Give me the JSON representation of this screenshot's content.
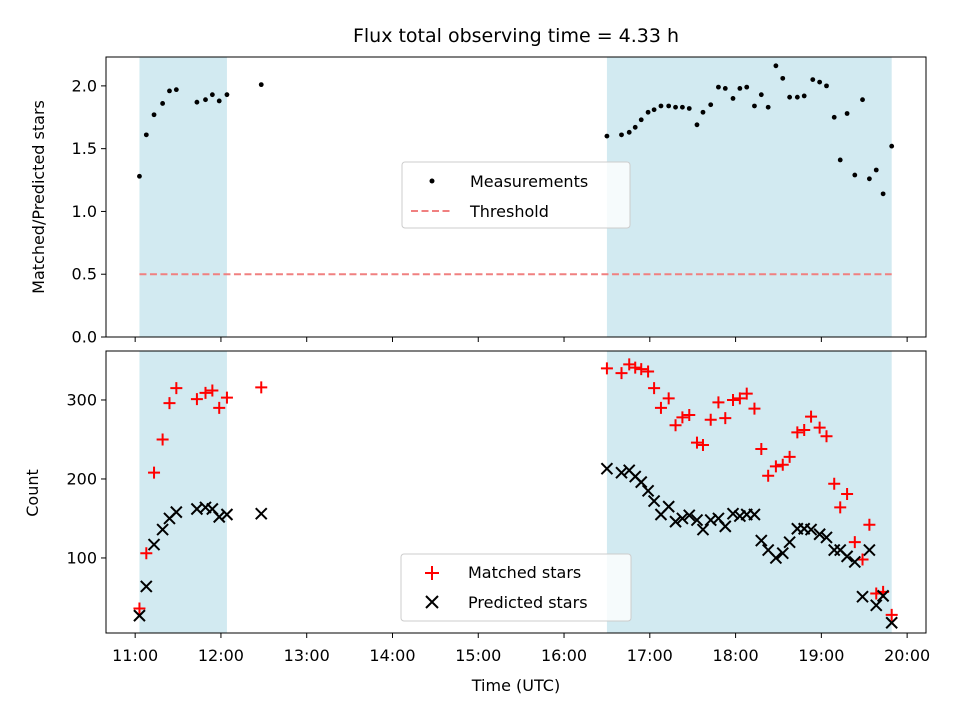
{
  "figure": {
    "title": "Flux total observing time = 4.33 h",
    "xlabel": "Time (UTC)",
    "x_ticks": [
      "11:00",
      "12:00",
      "13:00",
      "14:00",
      "15:00",
      "16:00",
      "17:00",
      "18:00",
      "19:00",
      "20:00"
    ]
  },
  "colors": {
    "band": "#add8e6",
    "measure": "#000000",
    "threshold": "#f08080",
    "matched": "#ff0000",
    "predicted": "#000000"
  },
  "chart_data": [
    {
      "type": "scatter",
      "ylabel": "Matched/Predicted stars",
      "ylim": [
        0,
        2.23
      ],
      "xlim": [
        10.66,
        20.22
      ],
      "y_ticks": [
        "0.0",
        "0.5",
        "1.0",
        "1.5",
        "2.0"
      ],
      "y_tick_values": [
        0,
        0.5,
        1.0,
        1.5,
        2.0
      ],
      "shaded_intervals": [
        [
          11.05,
          12.07
        ],
        [
          16.5,
          19.82
        ]
      ],
      "legend": {
        "placement": "center",
        "measurements": "Measurements",
        "threshold": "Threshold"
      },
      "threshold": {
        "value": 0.5,
        "x_range": [
          11.05,
          19.82
        ]
      },
      "series": [
        {
          "name": "Measurements",
          "points": [
            [
              11.05,
              1.28
            ],
            [
              11.13,
              1.61
            ],
            [
              11.22,
              1.77
            ],
            [
              11.32,
              1.86
            ],
            [
              11.4,
              1.96
            ],
            [
              11.48,
              1.97
            ],
            [
              11.72,
              1.87
            ],
            [
              11.82,
              1.89
            ],
            [
              11.9,
              1.93
            ],
            [
              11.98,
              1.88
            ],
            [
              12.07,
              1.93
            ],
            [
              12.47,
              2.01
            ],
            [
              16.5,
              1.6
            ],
            [
              16.67,
              1.61
            ],
            [
              16.76,
              1.63
            ],
            [
              16.83,
              1.67
            ],
            [
              16.9,
              1.73
            ],
            [
              16.98,
              1.79
            ],
            [
              17.05,
              1.81
            ],
            [
              17.13,
              1.84
            ],
            [
              17.22,
              1.84
            ],
            [
              17.3,
              1.83
            ],
            [
              17.38,
              1.83
            ],
            [
              17.46,
              1.82
            ],
            [
              17.55,
              1.69
            ],
            [
              17.62,
              1.79
            ],
            [
              17.71,
              1.85
            ],
            [
              17.8,
              1.99
            ],
            [
              17.88,
              1.98
            ],
            [
              17.97,
              1.9
            ],
            [
              18.05,
              1.98
            ],
            [
              18.13,
              1.99
            ],
            [
              18.22,
              1.84
            ],
            [
              18.3,
              1.93
            ],
            [
              18.38,
              1.83
            ],
            [
              18.47,
              2.16
            ],
            [
              18.55,
              2.06
            ],
            [
              18.63,
              1.91
            ],
            [
              18.72,
              1.91
            ],
            [
              18.8,
              1.92
            ],
            [
              18.9,
              2.05
            ],
            [
              18.98,
              2.03
            ],
            [
              19.06,
              2.0
            ],
            [
              19.15,
              1.75
            ],
            [
              19.22,
              1.41
            ],
            [
              19.3,
              1.78
            ],
            [
              19.39,
              1.29
            ],
            [
              19.48,
              1.89
            ],
            [
              19.56,
              1.26
            ],
            [
              19.64,
              1.33
            ],
            [
              19.72,
              1.14
            ],
            [
              19.82,
              1.52
            ]
          ]
        }
      ]
    },
    {
      "type": "scatter",
      "ylabel": "Count",
      "ylim": [
        5,
        362
      ],
      "xlim": [
        10.66,
        20.22
      ],
      "y_ticks": [
        "100",
        "200",
        "300"
      ],
      "y_tick_values": [
        100,
        200,
        300
      ],
      "shaded_intervals": [
        [
          11.05,
          12.07
        ],
        [
          16.5,
          19.82
        ]
      ],
      "legend": {
        "placement": "lower center",
        "matched": "Matched stars",
        "predicted": "Predicted stars"
      },
      "series": [
        {
          "name": "Matched stars",
          "points": [
            [
              11.05,
              36
            ],
            [
              11.13,
              106
            ],
            [
              11.22,
              208
            ],
            [
              11.32,
              250
            ],
            [
              11.4,
              296
            ],
            [
              11.48,
              315
            ],
            [
              11.72,
              301
            ],
            [
              11.82,
              309
            ],
            [
              11.9,
              312
            ],
            [
              11.98,
              290
            ],
            [
              12.07,
              303
            ],
            [
              12.47,
              316
            ],
            [
              16.5,
              340
            ],
            [
              16.67,
              334
            ],
            [
              16.76,
              345
            ],
            [
              16.83,
              341
            ],
            [
              16.9,
              339
            ],
            [
              16.98,
              336
            ],
            [
              17.05,
              315
            ],
            [
              17.13,
              290
            ],
            [
              17.22,
              302
            ],
            [
              17.3,
              268
            ],
            [
              17.38,
              278
            ],
            [
              17.46,
              281
            ],
            [
              17.55,
              246
            ],
            [
              17.62,
              243
            ],
            [
              17.71,
              275
            ],
            [
              17.8,
              297
            ],
            [
              17.88,
              277
            ],
            [
              17.97,
              300
            ],
            [
              18.05,
              302
            ],
            [
              18.13,
              308
            ],
            [
              18.22,
              289
            ],
            [
              18.3,
              238
            ],
            [
              18.38,
              204
            ],
            [
              18.47,
              216
            ],
            [
              18.55,
              218
            ],
            [
              18.63,
              228
            ],
            [
              18.72,
              259
            ],
            [
              18.8,
              262
            ],
            [
              18.88,
              279
            ],
            [
              18.98,
              265
            ],
            [
              19.06,
              254
            ],
            [
              19.15,
              194
            ],
            [
              19.22,
              164
            ],
            [
              19.3,
              181
            ],
            [
              19.39,
              120
            ],
            [
              19.48,
              98
            ],
            [
              19.56,
              142
            ],
            [
              19.64,
              55
            ],
            [
              19.72,
              57
            ],
            [
              19.82,
              28
            ]
          ]
        },
        {
          "name": "Predicted stars",
          "points": [
            [
              11.05,
              27
            ],
            [
              11.13,
              64
            ],
            [
              11.22,
              117
            ],
            [
              11.32,
              136
            ],
            [
              11.4,
              150
            ],
            [
              11.48,
              158
            ],
            [
              11.72,
              162
            ],
            [
              11.82,
              164
            ],
            [
              11.9,
              162
            ],
            [
              11.98,
              152
            ],
            [
              12.07,
              155
            ],
            [
              12.47,
              156
            ],
            [
              16.5,
              213
            ],
            [
              16.67,
              208
            ],
            [
              16.76,
              211
            ],
            [
              16.83,
              203
            ],
            [
              16.9,
              196
            ],
            [
              16.98,
              185
            ],
            [
              17.05,
              172
            ],
            [
              17.13,
              155
            ],
            [
              17.22,
              165
            ],
            [
              17.3,
              146
            ],
            [
              17.38,
              150
            ],
            [
              17.46,
              154
            ],
            [
              17.55,
              148
            ],
            [
              17.62,
              136
            ],
            [
              17.71,
              148
            ],
            [
              17.8,
              150
            ],
            [
              17.88,
              140
            ],
            [
              17.97,
              156
            ],
            [
              18.05,
              153
            ],
            [
              18.13,
              155
            ],
            [
              18.22,
              155
            ],
            [
              18.3,
              122
            ],
            [
              18.38,
              110
            ],
            [
              18.47,
              100
            ],
            [
              18.55,
              106
            ],
            [
              18.63,
              120
            ],
            [
              18.72,
              137
            ],
            [
              18.8,
              137
            ],
            [
              18.88,
              136
            ],
            [
              18.98,
              130
            ],
            [
              19.06,
              126
            ],
            [
              19.15,
              110
            ],
            [
              19.22,
              110
            ],
            [
              19.3,
              102
            ],
            [
              19.39,
              95
            ],
            [
              19.48,
              51
            ],
            [
              19.56,
              110
            ],
            [
              19.64,
              40
            ],
            [
              19.72,
              52
            ],
            [
              19.82,
              18
            ]
          ]
        }
      ]
    }
  ]
}
